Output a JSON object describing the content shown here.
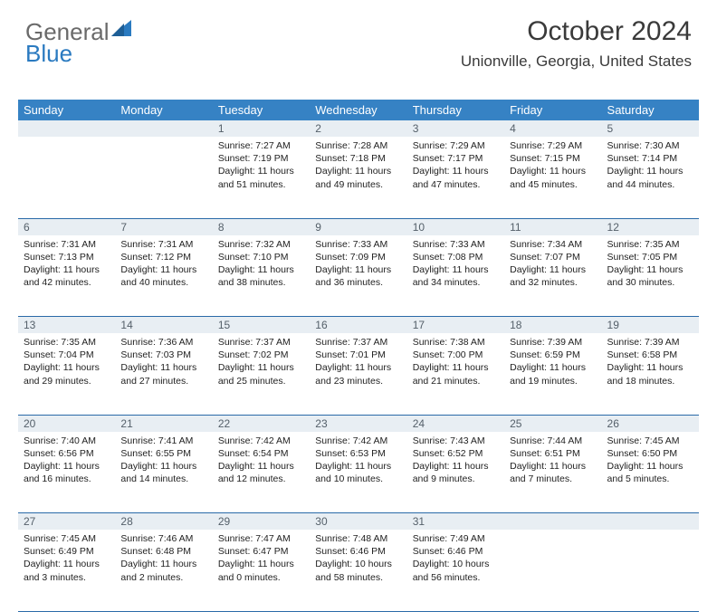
{
  "logo": {
    "line1": "General",
    "line2": "Blue"
  },
  "header": {
    "title": "October 2024",
    "location": "Unionville, Georgia, United States"
  },
  "colors": {
    "header_bg": "#3682c4",
    "header_text": "#ffffff",
    "daynum_bg": "#e8eef3",
    "daynum_text": "#55606a",
    "row_border": "#2a6aa8",
    "title_text": "#3a3a3a",
    "logo_gray": "#6a6a6a",
    "logo_blue": "#2a7ac0"
  },
  "weekdays": [
    "Sunday",
    "Monday",
    "Tuesday",
    "Wednesday",
    "Thursday",
    "Friday",
    "Saturday"
  ],
  "weeks": [
    [
      null,
      null,
      {
        "n": "1",
        "sunrise": "Sunrise: 7:27 AM",
        "sunset": "Sunset: 7:19 PM",
        "daylight": "Daylight: 11 hours and 51 minutes."
      },
      {
        "n": "2",
        "sunrise": "Sunrise: 7:28 AM",
        "sunset": "Sunset: 7:18 PM",
        "daylight": "Daylight: 11 hours and 49 minutes."
      },
      {
        "n": "3",
        "sunrise": "Sunrise: 7:29 AM",
        "sunset": "Sunset: 7:17 PM",
        "daylight": "Daylight: 11 hours and 47 minutes."
      },
      {
        "n": "4",
        "sunrise": "Sunrise: 7:29 AM",
        "sunset": "Sunset: 7:15 PM",
        "daylight": "Daylight: 11 hours and 45 minutes."
      },
      {
        "n": "5",
        "sunrise": "Sunrise: 7:30 AM",
        "sunset": "Sunset: 7:14 PM",
        "daylight": "Daylight: 11 hours and 44 minutes."
      }
    ],
    [
      {
        "n": "6",
        "sunrise": "Sunrise: 7:31 AM",
        "sunset": "Sunset: 7:13 PM",
        "daylight": "Daylight: 11 hours and 42 minutes."
      },
      {
        "n": "7",
        "sunrise": "Sunrise: 7:31 AM",
        "sunset": "Sunset: 7:12 PM",
        "daylight": "Daylight: 11 hours and 40 minutes."
      },
      {
        "n": "8",
        "sunrise": "Sunrise: 7:32 AM",
        "sunset": "Sunset: 7:10 PM",
        "daylight": "Daylight: 11 hours and 38 minutes."
      },
      {
        "n": "9",
        "sunrise": "Sunrise: 7:33 AM",
        "sunset": "Sunset: 7:09 PM",
        "daylight": "Daylight: 11 hours and 36 minutes."
      },
      {
        "n": "10",
        "sunrise": "Sunrise: 7:33 AM",
        "sunset": "Sunset: 7:08 PM",
        "daylight": "Daylight: 11 hours and 34 minutes."
      },
      {
        "n": "11",
        "sunrise": "Sunrise: 7:34 AM",
        "sunset": "Sunset: 7:07 PM",
        "daylight": "Daylight: 11 hours and 32 minutes."
      },
      {
        "n": "12",
        "sunrise": "Sunrise: 7:35 AM",
        "sunset": "Sunset: 7:05 PM",
        "daylight": "Daylight: 11 hours and 30 minutes."
      }
    ],
    [
      {
        "n": "13",
        "sunrise": "Sunrise: 7:35 AM",
        "sunset": "Sunset: 7:04 PM",
        "daylight": "Daylight: 11 hours and 29 minutes."
      },
      {
        "n": "14",
        "sunrise": "Sunrise: 7:36 AM",
        "sunset": "Sunset: 7:03 PM",
        "daylight": "Daylight: 11 hours and 27 minutes."
      },
      {
        "n": "15",
        "sunrise": "Sunrise: 7:37 AM",
        "sunset": "Sunset: 7:02 PM",
        "daylight": "Daylight: 11 hours and 25 minutes."
      },
      {
        "n": "16",
        "sunrise": "Sunrise: 7:37 AM",
        "sunset": "Sunset: 7:01 PM",
        "daylight": "Daylight: 11 hours and 23 minutes."
      },
      {
        "n": "17",
        "sunrise": "Sunrise: 7:38 AM",
        "sunset": "Sunset: 7:00 PM",
        "daylight": "Daylight: 11 hours and 21 minutes."
      },
      {
        "n": "18",
        "sunrise": "Sunrise: 7:39 AM",
        "sunset": "Sunset: 6:59 PM",
        "daylight": "Daylight: 11 hours and 19 minutes."
      },
      {
        "n": "19",
        "sunrise": "Sunrise: 7:39 AM",
        "sunset": "Sunset: 6:58 PM",
        "daylight": "Daylight: 11 hours and 18 minutes."
      }
    ],
    [
      {
        "n": "20",
        "sunrise": "Sunrise: 7:40 AM",
        "sunset": "Sunset: 6:56 PM",
        "daylight": "Daylight: 11 hours and 16 minutes."
      },
      {
        "n": "21",
        "sunrise": "Sunrise: 7:41 AM",
        "sunset": "Sunset: 6:55 PM",
        "daylight": "Daylight: 11 hours and 14 minutes."
      },
      {
        "n": "22",
        "sunrise": "Sunrise: 7:42 AM",
        "sunset": "Sunset: 6:54 PM",
        "daylight": "Daylight: 11 hours and 12 minutes."
      },
      {
        "n": "23",
        "sunrise": "Sunrise: 7:42 AM",
        "sunset": "Sunset: 6:53 PM",
        "daylight": "Daylight: 11 hours and 10 minutes."
      },
      {
        "n": "24",
        "sunrise": "Sunrise: 7:43 AM",
        "sunset": "Sunset: 6:52 PM",
        "daylight": "Daylight: 11 hours and 9 minutes."
      },
      {
        "n": "25",
        "sunrise": "Sunrise: 7:44 AM",
        "sunset": "Sunset: 6:51 PM",
        "daylight": "Daylight: 11 hours and 7 minutes."
      },
      {
        "n": "26",
        "sunrise": "Sunrise: 7:45 AM",
        "sunset": "Sunset: 6:50 PM",
        "daylight": "Daylight: 11 hours and 5 minutes."
      }
    ],
    [
      {
        "n": "27",
        "sunrise": "Sunrise: 7:45 AM",
        "sunset": "Sunset: 6:49 PM",
        "daylight": "Daylight: 11 hours and 3 minutes."
      },
      {
        "n": "28",
        "sunrise": "Sunrise: 7:46 AM",
        "sunset": "Sunset: 6:48 PM",
        "daylight": "Daylight: 11 hours and 2 minutes."
      },
      {
        "n": "29",
        "sunrise": "Sunrise: 7:47 AM",
        "sunset": "Sunset: 6:47 PM",
        "daylight": "Daylight: 11 hours and 0 minutes."
      },
      {
        "n": "30",
        "sunrise": "Sunrise: 7:48 AM",
        "sunset": "Sunset: 6:46 PM",
        "daylight": "Daylight: 10 hours and 58 minutes."
      },
      {
        "n": "31",
        "sunrise": "Sunrise: 7:49 AM",
        "sunset": "Sunset: 6:46 PM",
        "daylight": "Daylight: 10 hours and 56 minutes."
      },
      null,
      null
    ]
  ]
}
